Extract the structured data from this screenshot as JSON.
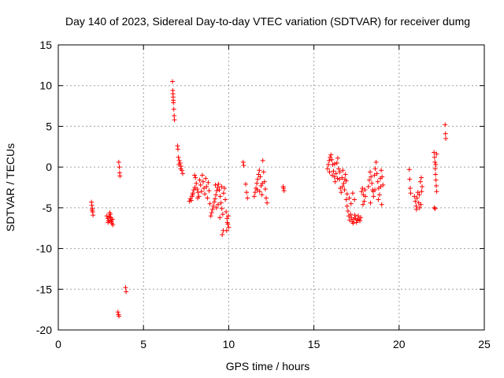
{
  "chart_data": {
    "type": "scatter",
    "title": "Day 140 of 2023, Sidereal Day-to-day VTEC variation (SDTVAR) for receiver dumg",
    "xlabel": "GPS time / hours",
    "ylabel": "SDTVAR / TECUs",
    "xlim": [
      0,
      25
    ],
    "ylim": [
      -20,
      15
    ],
    "xticks": [
      0,
      5,
      10,
      15,
      20,
      25
    ],
    "yticks": [
      -20,
      -15,
      -10,
      -5,
      0,
      5,
      10,
      15
    ],
    "xtick_labels": [
      "0",
      "5",
      "10",
      "15",
      "20",
      "25"
    ],
    "ytick_labels": [
      "-20",
      "-15",
      "-10",
      "-5",
      "0",
      "5",
      "10",
      "15"
    ],
    "grid": true,
    "marker": "+",
    "color": "#ff0000",
    "series": [
      {
        "name": "SDTVAR",
        "points": [
          [
            1.95,
            -4.3
          ],
          [
            1.97,
            -4.7
          ],
          [
            2.0,
            -5.1
          ],
          [
            2.02,
            -5.5
          ],
          [
            2.04,
            -5.9
          ],
          [
            1.98,
            -5.3
          ],
          [
            2.85,
            -6.0
          ],
          [
            2.9,
            -6.3
          ],
          [
            2.95,
            -6.6
          ],
          [
            3.0,
            -6.1
          ],
          [
            3.05,
            -5.8
          ],
          [
            3.1,
            -6.5
          ],
          [
            3.15,
            -6.9
          ],
          [
            3.2,
            -7.1
          ],
          [
            2.92,
            -6.8
          ],
          [
            3.08,
            -6.2
          ],
          [
            3.12,
            -6.7
          ],
          [
            3.18,
            -6.4
          ],
          [
            3.02,
            -5.6
          ],
          [
            3.55,
            0.6
          ],
          [
            3.58,
            0.0
          ],
          [
            3.6,
            -0.7
          ],
          [
            3.62,
            -1.1
          ],
          [
            3.5,
            -17.8
          ],
          [
            3.53,
            -18.1
          ],
          [
            3.56,
            -18.3
          ],
          [
            3.95,
            -14.8
          ],
          [
            3.98,
            -15.3
          ],
          [
            6.7,
            10.5
          ],
          [
            6.72,
            9.4
          ],
          [
            6.74,
            8.6
          ],
          [
            6.76,
            7.9
          ],
          [
            6.78,
            7.1
          ],
          [
            6.8,
            6.3
          ],
          [
            6.82,
            5.8
          ],
          [
            6.75,
            8.2
          ],
          [
            6.73,
            9.0
          ],
          [
            7.0,
            2.6
          ],
          [
            7.02,
            2.2
          ],
          [
            7.05,
            1.2
          ],
          [
            7.1,
            0.8
          ],
          [
            7.15,
            0.5
          ],
          [
            7.2,
            0.1
          ],
          [
            7.25,
            -0.4
          ],
          [
            7.3,
            -0.8
          ],
          [
            7.08,
            0.3
          ],
          [
            7.18,
            -0.2
          ],
          [
            7.7,
            -4.2
          ],
          [
            7.75,
            -3.9
          ],
          [
            7.8,
            -4.1
          ],
          [
            7.85,
            -3.6
          ],
          [
            7.9,
            -3.2
          ],
          [
            7.95,
            -2.8
          ],
          [
            8.0,
            -1.0
          ],
          [
            8.05,
            -1.3
          ],
          [
            8.1,
            -2.0
          ],
          [
            8.15,
            -2.7
          ],
          [
            8.2,
            -3.1
          ],
          [
            8.25,
            -3.6
          ],
          [
            8.3,
            -1.6
          ],
          [
            8.35,
            -2.2
          ],
          [
            8.4,
            -3.0
          ],
          [
            8.45,
            -1.0
          ],
          [
            8.5,
            -1.8
          ],
          [
            8.55,
            -2.6
          ],
          [
            8.6,
            -3.3
          ],
          [
            8.65,
            -1.4
          ],
          [
            8.7,
            -2.4
          ],
          [
            8.75,
            -3.8
          ],
          [
            8.8,
            -1.9
          ],
          [
            8.85,
            -2.9
          ],
          [
            8.9,
            -4.5
          ],
          [
            7.88,
            -3.4
          ],
          [
            8.02,
            -2.5
          ],
          [
            8.18,
            -3.8
          ],
          [
            8.95,
            -6.0
          ],
          [
            9.0,
            -5.6
          ],
          [
            9.05,
            -5.2
          ],
          [
            9.1,
            -4.8
          ],
          [
            9.15,
            -4.3
          ],
          [
            9.2,
            -3.9
          ],
          [
            9.25,
            -3.4
          ],
          [
            9.3,
            -2.9
          ],
          [
            9.35,
            -2.5
          ],
          [
            9.4,
            -2.1
          ],
          [
            9.45,
            -2.8
          ],
          [
            9.5,
            -3.6
          ],
          [
            9.55,
            -4.4
          ],
          [
            9.6,
            -5.1
          ],
          [
            9.65,
            -5.8
          ],
          [
            9.7,
            -3.2
          ],
          [
            9.75,
            -2.6
          ],
          [
            9.8,
            -4.0
          ],
          [
            9.85,
            -5.5
          ],
          [
            9.9,
            -6.3
          ],
          [
            9.95,
            -7.0
          ],
          [
            10.0,
            -7.4
          ],
          [
            9.62,
            -8.3
          ],
          [
            9.68,
            -7.8
          ],
          [
            9.22,
            -2.2
          ],
          [
            9.28,
            -5.0
          ],
          [
            9.38,
            -4.6
          ],
          [
            9.48,
            -6.2
          ],
          [
            9.58,
            -2.4
          ],
          [
            9.88,
            -7.8
          ],
          [
            9.92,
            -6.8
          ],
          [
            9.98,
            -6.0
          ],
          [
            10.85,
            0.6
          ],
          [
            10.88,
            0.2
          ],
          [
            11.0,
            -2.1
          ],
          [
            11.05,
            -3.1
          ],
          [
            11.1,
            -3.8
          ],
          [
            11.5,
            -3.6
          ],
          [
            11.55,
            -3.1
          ],
          [
            11.6,
            -2.6
          ],
          [
            11.65,
            -2.0
          ],
          [
            11.7,
            -1.5
          ],
          [
            11.75,
            -0.9
          ],
          [
            11.8,
            -0.4
          ],
          [
            11.85,
            -1.2
          ],
          [
            11.9,
            -2.3
          ],
          [
            11.95,
            -3.4
          ],
          [
            12.0,
            0.8
          ],
          [
            12.05,
            -0.6
          ],
          [
            12.1,
            -1.8
          ],
          [
            12.15,
            -2.7
          ],
          [
            12.2,
            -3.8
          ],
          [
            12.25,
            -4.4
          ],
          [
            11.68,
            -2.8
          ],
          [
            11.82,
            -3.0
          ],
          [
            11.98,
            -2.0
          ],
          [
            13.2,
            -2.4
          ],
          [
            13.25,
            -2.9
          ],
          [
            13.22,
            -2.6
          ],
          [
            15.8,
            -0.2
          ],
          [
            15.85,
            0.3
          ],
          [
            15.9,
            0.8
          ],
          [
            15.95,
            1.2
          ],
          [
            16.0,
            1.5
          ],
          [
            16.05,
            0.9
          ],
          [
            16.1,
            0.3
          ],
          [
            16.15,
            -0.5
          ],
          [
            16.2,
            -1.2
          ],
          [
            16.25,
            -1.8
          ],
          [
            16.3,
            -0.8
          ],
          [
            16.35,
            0.5
          ],
          [
            16.4,
            1.1
          ],
          [
            16.45,
            -0.2
          ],
          [
            16.5,
            -1.5
          ],
          [
            16.55,
            -2.6
          ],
          [
            16.6,
            -3.1
          ],
          [
            16.65,
            -1.3
          ],
          [
            16.7,
            -0.4
          ],
          [
            16.75,
            -2.0
          ],
          [
            16.8,
            -2.8
          ],
          [
            16.85,
            -0.9
          ],
          [
            16.9,
            -1.7
          ],
          [
            16.95,
            -3.3
          ],
          [
            15.92,
            -0.6
          ],
          [
            16.08,
            -1.0
          ],
          [
            16.22,
            0.4
          ],
          [
            16.38,
            -1.4
          ],
          [
            16.52,
            -0.6
          ],
          [
            16.68,
            -2.4
          ],
          [
            16.82,
            -1.5
          ],
          [
            16.9,
            -4.0
          ],
          [
            16.95,
            -4.8
          ],
          [
            17.0,
            -5.4
          ],
          [
            17.05,
            -6.0
          ],
          [
            17.1,
            -6.5
          ],
          [
            17.15,
            -5.8
          ],
          [
            17.2,
            -6.2
          ],
          [
            17.25,
            -6.7
          ],
          [
            17.3,
            -6.9
          ],
          [
            17.35,
            -6.4
          ],
          [
            17.4,
            -5.9
          ],
          [
            17.45,
            -6.3
          ],
          [
            17.5,
            -6.8
          ],
          [
            17.55,
            -6.5
          ],
          [
            17.6,
            -6.0
          ],
          [
            17.65,
            -6.4
          ],
          [
            17.7,
            -6.6
          ],
          [
            17.75,
            -6.2
          ],
          [
            17.08,
            -3.8
          ],
          [
            17.18,
            -4.5
          ],
          [
            17.28,
            -3.2
          ],
          [
            17.38,
            -4.0
          ],
          [
            17.8,
            -3.0
          ],
          [
            17.85,
            -2.6
          ],
          [
            17.9,
            -3.4
          ],
          [
            17.95,
            -4.2
          ],
          [
            18.0,
            -2.8
          ],
          [
            17.88,
            -4.6
          ],
          [
            18.02,
            -3.6
          ],
          [
            18.2,
            -2.4
          ],
          [
            18.25,
            -1.6
          ],
          [
            18.3,
            -0.6
          ],
          [
            18.35,
            -1.2
          ],
          [
            18.4,
            -2.0
          ],
          [
            18.45,
            -2.8
          ],
          [
            18.5,
            -3.6
          ],
          [
            18.55,
            -1.0
          ],
          [
            18.6,
            -0.2
          ],
          [
            18.65,
            0.6
          ],
          [
            18.7,
            -0.8
          ],
          [
            18.75,
            -1.8
          ],
          [
            18.8,
            -2.6
          ],
          [
            18.85,
            -3.4
          ],
          [
            18.9,
            -1.4
          ],
          [
            18.95,
            -0.4
          ],
          [
            19.0,
            -1.2
          ],
          [
            19.05,
            -2.2
          ],
          [
            18.32,
            -4.4
          ],
          [
            18.48,
            -3.0
          ],
          [
            18.58,
            -2.8
          ],
          [
            18.78,
            -4.0
          ],
          [
            18.92,
            -2.4
          ],
          [
            18.98,
            -4.6
          ],
          [
            20.6,
            -0.3
          ],
          [
            20.62,
            -1.5
          ],
          [
            20.65,
            -2.6
          ],
          [
            20.68,
            -3.2
          ],
          [
            20.9,
            -3.6
          ],
          [
            20.95,
            -4.2
          ],
          [
            21.0,
            -4.8
          ],
          [
            21.05,
            -3.8
          ],
          [
            21.1,
            -3.1
          ],
          [
            21.15,
            -4.4
          ],
          [
            21.2,
            -5.0
          ],
          [
            21.25,
            -1.8
          ],
          [
            21.3,
            -1.3
          ],
          [
            21.35,
            -2.4
          ],
          [
            21.02,
            -5.2
          ],
          [
            21.18,
            -3.4
          ],
          [
            21.28,
            -4.6
          ],
          [
            21.32,
            -3.0
          ],
          [
            22.05,
            1.8
          ],
          [
            22.08,
            1.2
          ],
          [
            22.1,
            0.6
          ],
          [
            22.12,
            -0.2
          ],
          [
            22.14,
            -0.9
          ],
          [
            22.16,
            -1.6
          ],
          [
            22.18,
            -2.3
          ],
          [
            22.2,
            -3.0
          ],
          [
            22.12,
            -5.1
          ],
          [
            22.06,
            -5.0
          ],
          [
            22.15,
            0.3
          ],
          [
            22.2,
            1.6
          ],
          [
            22.7,
            5.2
          ],
          [
            22.72,
            4.1
          ],
          [
            22.74,
            3.5
          ]
        ]
      }
    ]
  }
}
